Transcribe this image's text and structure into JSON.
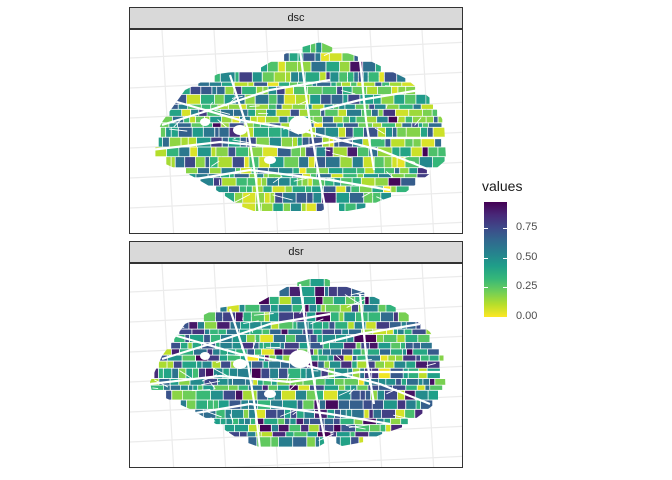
{
  "panels": [
    {
      "id": "dsc",
      "label": "dsc",
      "palette_bias": 0.15
    },
    {
      "id": "dsr",
      "label": "dsr",
      "palette_bias": 0.45
    }
  ],
  "legend": {
    "title": "values",
    "ticks": [
      {
        "value": 0.75,
        "label": "0.75"
      },
      {
        "value": 0.5,
        "label": "0.50"
      },
      {
        "value": 0.25,
        "label": "0.25"
      },
      {
        "value": 0.0,
        "label": "0.00"
      }
    ],
    "range": [
      0,
      0.97
    ],
    "colors": [
      "#fde725",
      "#b5de2b",
      "#6ece58",
      "#35b779",
      "#1f9e89",
      "#26828e",
      "#31688e",
      "#3e4989",
      "#482878",
      "#440154"
    ]
  }
}
